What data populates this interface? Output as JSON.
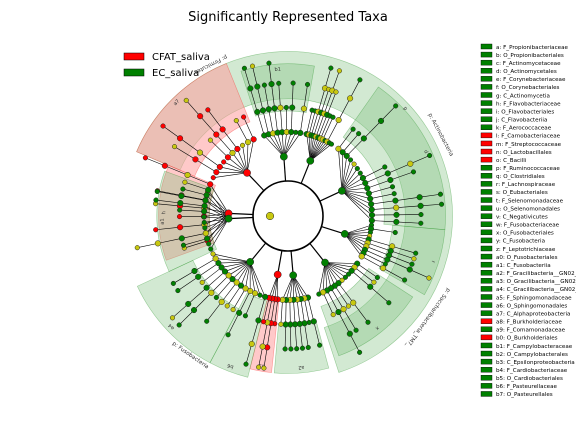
{
  "chart_data": {
    "type": "cladogram",
    "title": "Significantly Represented Taxa",
    "legend": {
      "placement": "top-left",
      "entries": [
        {
          "name": "CFAT_saliva",
          "color": "#ff0000"
        },
        {
          "name": "EC_saliva",
          "color": "#008000"
        }
      ]
    },
    "colors": {
      "cfat": "#ff0000",
      "cfat_shade": "#ff9c9c",
      "ec": "#008000",
      "ec_shade": "#7fbf7f",
      "node_neutral": "#c8c810",
      "edge": "#000000"
    },
    "phylum_labels": [
      {
        "text": "p: Firmicutes",
        "angle": -117
      },
      {
        "text": "p: Actinobacteria",
        "angle": -28
      },
      {
        "text": "p: Saccharibacteria_TM7_",
        "angle": 36
      },
      {
        "text": "p: Fusobacteria",
        "angle": 125
      }
    ],
    "sectors": [
      {
        "id": "firm",
        "group": "ec",
        "start": -157,
        "end": 72,
        "r0": 0.67,
        "r1": 0.94,
        "code": "p"
      },
      {
        "id": "firm_red",
        "group": "cfat",
        "start": -157,
        "end": -112,
        "r0": 0.58,
        "r1": 0.94,
        "code": "a7"
      },
      {
        "id": "firm_red2",
        "group": "cfat",
        "start": -200,
        "end": -157,
        "r0": 0.45,
        "r1": 0.74,
        "code": "h"
      },
      {
        "id": "firm_green_top",
        "group": "ec",
        "start": -108,
        "end": -80,
        "r0": 0.6,
        "r1": 0.87,
        "code": "b1"
      },
      {
        "id": "act",
        "group": "ec",
        "start": -55,
        "end": 5,
        "r0": 0.55,
        "r1": 0.9,
        "code": "d"
      },
      {
        "id": "sacc",
        "group": "ec",
        "start": 5,
        "end": 30,
        "r0": 0.6,
        "r1": 0.9,
        "code": "r"
      },
      {
        "id": "fuso_a",
        "group": "ec",
        "start": 33,
        "end": 70,
        "r0": 0.55,
        "r1": 0.85,
        "code": "x"
      },
      {
        "id": "fuso_b",
        "group": "ec",
        "start": 75,
        "end": 95,
        "r0": 0.62,
        "r1": 0.9,
        "code": "a2"
      },
      {
        "id": "fuso_red",
        "group": "cfat",
        "start": 96,
        "end": 104,
        "r0": 0.5,
        "r1": 0.9,
        "code": "b3"
      },
      {
        "id": "prot_a",
        "group": "ec",
        "start": 104,
        "end": 118,
        "r0": 0.5,
        "r1": 0.95,
        "code": "b6"
      },
      {
        "id": "prot_b",
        "group": "ec",
        "start": 118,
        "end": 155,
        "r0": 0.6,
        "r1": 0.95,
        "code": "a4"
      },
      {
        "id": "bact",
        "group": "ec",
        "start": 155,
        "end": 200,
        "r0": 0.45,
        "r1": 0.75,
        "code": "a1"
      }
    ],
    "side_legend": [
      {
        "label": "a: F_Propionibacteriaceae",
        "group": "ec"
      },
      {
        "label": "b: O_Propionibacteriales",
        "group": "ec"
      },
      {
        "label": "c: F_Actinomycetaceae",
        "group": "ec"
      },
      {
        "label": "d: O_Actinomycetales",
        "group": "ec"
      },
      {
        "label": "e: F_Corynebacteriaceae",
        "group": "ec"
      },
      {
        "label": "f: O_Corynebacteriales",
        "group": "ec"
      },
      {
        "label": "g: C_Actinomycetia",
        "group": "ec"
      },
      {
        "label": "h: F_Flavobacteriaceae",
        "group": "ec"
      },
      {
        "label": "i: O_Flavobacteriales",
        "group": "ec"
      },
      {
        "label": "j: C_Flavobacteriia",
        "group": "ec"
      },
      {
        "label": "k: F_Aerococcaceae",
        "group": "ec"
      },
      {
        "label": "l: F_Carnobacteriaceae",
        "group": "cfat"
      },
      {
        "label": "m: F_Streptococcaceae",
        "group": "cfat"
      },
      {
        "label": "n: O_Lactobacillales",
        "group": "cfat"
      },
      {
        "label": "o: C_Bacilli",
        "group": "cfat"
      },
      {
        "label": "p: F_Ruminococcaceae",
        "group": "ec"
      },
      {
        "label": "q: O_Clostridiales",
        "group": "ec"
      },
      {
        "label": "r: F_Lachnospiraceae",
        "group": "ec"
      },
      {
        "label": "s: O_Eubacteriales",
        "group": "ec"
      },
      {
        "label": "t: F_Selenomonadaceae",
        "group": "ec"
      },
      {
        "label": "u: O_Selenomonadales",
        "group": "ec"
      },
      {
        "label": "v: C_Negativicutes",
        "group": "ec"
      },
      {
        "label": "w: F_Fusobacteriaceae",
        "group": "ec"
      },
      {
        "label": "x: O_Fusobacteriales",
        "group": "ec"
      },
      {
        "label": "y: C_Fusobacteria",
        "group": "ec"
      },
      {
        "label": "z: F_Leptotrichiaceae",
        "group": "ec"
      },
      {
        "label": "a0: O_Fusobacteriales",
        "group": "ec"
      },
      {
        "label": "a1: C_Fusobacteriia",
        "group": "ec"
      },
      {
        "label": "a2: F_Gracilibacteria__GN02_",
        "group": "ec"
      },
      {
        "label": "a3: O_Gracilibacteria__GN02_",
        "group": "ec"
      },
      {
        "label": "a4: C_Gracilibacteria__GN02_",
        "group": "ec"
      },
      {
        "label": "a5: F_Sphingomonadaceae",
        "group": "ec"
      },
      {
        "label": "a6: O_Sphingomonadales",
        "group": "ec"
      },
      {
        "label": "a7: C_Alphaproteobacteria",
        "group": "ec"
      },
      {
        "label": "a8: F_Burkholderiaceae",
        "group": "cfat"
      },
      {
        "label": "a9: F_Comamonadaceae",
        "group": "ec"
      },
      {
        "label": "b0: O_Burkholderiales",
        "group": "cfat"
      },
      {
        "label": "b1: F_Campylobacteraceae",
        "group": "ec"
      },
      {
        "label": "b2: O_Campylobacterales",
        "group": "ec"
      },
      {
        "label": "b3: C_Epsilonproteobacteria",
        "group": "ec"
      },
      {
        "label": "b4: F_Cardiobacteriaceae",
        "group": "ec"
      },
      {
        "label": "b5: O_Cardiobacteriales",
        "group": "ec"
      },
      {
        "label": "b6: F_Pasteurellaceae",
        "group": "ec"
      },
      {
        "label": "b7: O_Pasteurellales",
        "group": "ec"
      }
    ]
  }
}
